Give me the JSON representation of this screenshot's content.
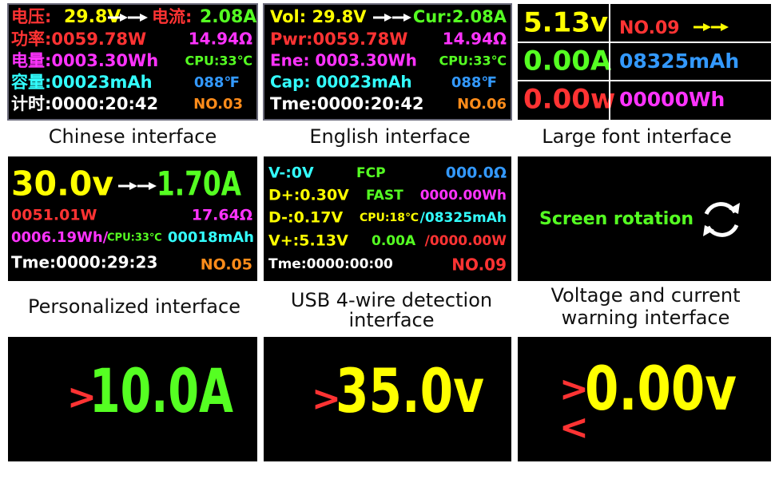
{
  "panels": [
    {
      "screen": [
        "电压:",
        "29.8V",
        "电流:",
        "2.08A",
        "功率:0059.78W",
        "14.94Ω",
        "电量:0003.30Wh",
        "CPU:33℃",
        "容量:00023mAh",
        "088℉",
        "计时:0000:20:42",
        "NO.03"
      ],
      "caption": [
        "Chinese interface"
      ]
    },
    {
      "screen": [
        "Vol: 29.8V",
        "Cur:2.08A",
        "Pwr:0059.78W",
        "14.94Ω",
        "Ene: 0003.30Wh",
        "CPU:33℃",
        "Cap: 00023mAh",
        "088℉",
        "Tme:0000:20:42",
        "NO.06"
      ],
      "caption": [
        "English interface"
      ]
    },
    {
      "screen": [
        "5.13v",
        "NO.09",
        "0.00A",
        "08325mAh",
        "0.00w",
        "00000Wh"
      ],
      "caption": [
        "Large font interface"
      ]
    },
    {
      "screen": [
        "30.0v",
        "1.70A",
        "0051.01W",
        "17.64Ω",
        "0006.19Wh/",
        "CPU:33℃",
        "00018mAh",
        "Tme:0000:29:23",
        "NO.05"
      ],
      "caption": [
        "Personalized interface"
      ]
    },
    {
      "screen": [
        "V-:0V",
        "FCP",
        "000.0Ω",
        "D+:0.30V",
        "FAST",
        "0000.00Wh",
        "D-:0.17V",
        "CPU:18℃",
        "/08325mAh",
        "V+:5.13V",
        "0.00A",
        "/0000.00W",
        "Tme:0000:00:00",
        "NO.09"
      ],
      "caption": [
        "USB 4-wire detection",
        "interface"
      ]
    },
    {
      "screen": [
        "Screen rotation"
      ],
      "caption": [
        "Voltage and current",
        "warning interface"
      ]
    },
    {
      "screen": [
        ">",
        "10.0A"
      ]
    },
    {
      "screen": [
        ">",
        "35.0v"
      ]
    },
    {
      "screen": [
        ">",
        "<",
        "0.00v"
      ]
    }
  ]
}
